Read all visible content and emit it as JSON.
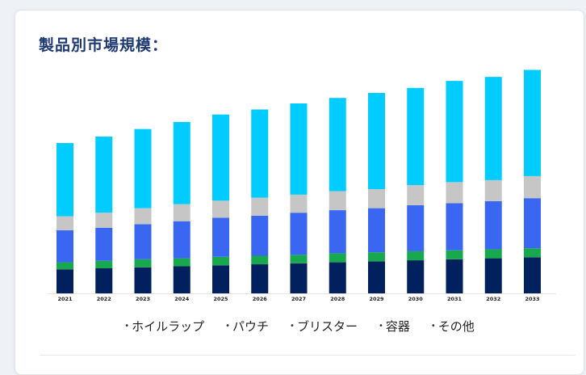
{
  "card": {
    "title": "製品別市場規模："
  },
  "chart_data": {
    "type": "bar",
    "stacked": true,
    "grid": false,
    "legend_position": "bottom",
    "categories": [
      "2021",
      "2022",
      "2023",
      "2024",
      "2025",
      "2026",
      "2027",
      "2028",
      "2029",
      "2030",
      "2031",
      "2032",
      "2033"
    ],
    "series": [
      {
        "name": "ホイルラップ",
        "color": "#00215d",
        "values": [
          24,
          25,
          26,
          27,
          28,
          29,
          30,
          31,
          32,
          33,
          34,
          35,
          36
        ]
      },
      {
        "name": "パウチ",
        "color": "#18a84e",
        "values": [
          7,
          7.5,
          8,
          8,
          8.5,
          8.5,
          8.5,
          9,
          9,
          9,
          9,
          9,
          9
        ]
      },
      {
        "name": "ブリスター",
        "color": "#3a67f2",
        "values": [
          32,
          33,
          35,
          37,
          39,
          40,
          42,
          43,
          44,
          46,
          47,
          48,
          50
        ]
      },
      {
        "name": "容器",
        "color": "#c6c6c6",
        "values": [
          14,
          15,
          16,
          17,
          17,
          18,
          18,
          19,
          19,
          20,
          21,
          21,
          22
        ]
      },
      {
        "name": "その他",
        "color": "#00ccff",
        "values": [
          73,
          76,
          79,
          82,
          86,
          88,
          91,
          93,
          96,
          97,
          101,
          103,
          106
        ]
      }
    ],
    "ylim": [
      0,
      250
    ]
  }
}
